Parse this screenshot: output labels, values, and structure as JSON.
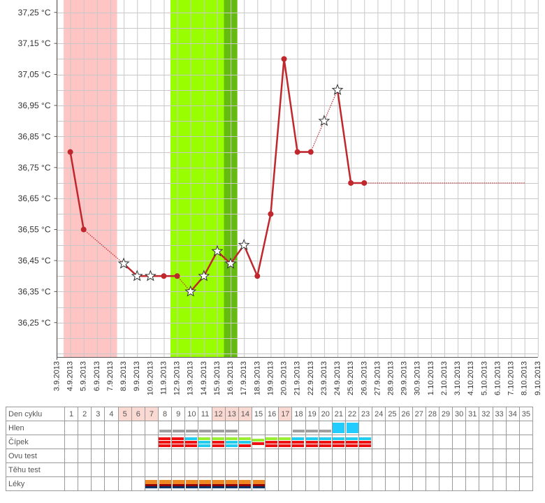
{
  "colors": {
    "line": "#c0272d",
    "pink_band": "#ffc4c4",
    "green_band": "#99ff00",
    "green_dark": "#66bb11",
    "grid": "#c8c8c8",
    "hlen_gray": "#a0a0a0",
    "hlen_blue": "#22ccff",
    "cipek_red": "#ee1111",
    "cipek_blue": "#22ccee",
    "cipek_green": "#99ee33",
    "leky_orange": "#ee8822",
    "leky_darkred": "#990000",
    "leky_navy": "#003366"
  },
  "chart_data": {
    "type": "line",
    "ylabel_unit": "°C",
    "ylim": [
      36.15,
      37.29
    ],
    "y_ticks": [
      "36,25 °C",
      "36,35 °C",
      "36,45 °C",
      "36,55 °C",
      "36,65 °C",
      "36,75 °C",
      "36,85 °C",
      "36,95 °C",
      "37,05 °C",
      "37,15 °C",
      "37,25 °C"
    ],
    "x_ticks": [
      "3.9.2013",
      "4.9.2013",
      "5.9.2013",
      "6.9.2013",
      "7.9.2013",
      "8.9.2013",
      "9.9.2013",
      "10.9.2013",
      "11.9.2013",
      "12.9.2013",
      "13.9.2013",
      "14.9.2013",
      "15.9.2013",
      "16.9.2013",
      "17.9.2013",
      "18.9.2013",
      "19.9.2013",
      "20.9.2013",
      "21.9.2013",
      "22.9.2013",
      "23.9.2013",
      "24.9.2013",
      "25.9.2013",
      "26.9.2013",
      "27.9.2013",
      "28.9.2013",
      "29.9.2013",
      "30.9.2013",
      "1.10.2013",
      "2.10.2013",
      "3.10.2013",
      "4.10.2013",
      "5.10.2013",
      "6.10.2013",
      "7.10.2013",
      "8.10.2013",
      "9.10.2013"
    ],
    "grid": true,
    "bands": [
      {
        "from_day": 1,
        "to_day": 4,
        "kind": "pink"
      },
      {
        "from_day": 9,
        "to_day": 13,
        "kind": "green"
      },
      {
        "from_day": 13,
        "to_day": 13,
        "kind": "green_dark"
      }
    ],
    "points": [
      {
        "day": 1,
        "date": "4.9.2013",
        "y": 36.8,
        "marker": "dot"
      },
      {
        "day": 2,
        "date": "5.9.2013",
        "y": 36.55,
        "marker": "dot"
      },
      {
        "day": 5,
        "date": "8.9.2013",
        "y": 36.44,
        "marker": "star"
      },
      {
        "day": 6,
        "date": "9.9.2013",
        "y": 36.4,
        "marker": "star"
      },
      {
        "day": 7,
        "date": "10.9.2013",
        "y": 36.4,
        "marker": "star"
      },
      {
        "day": 8,
        "date": "11.9.2013",
        "y": 36.4,
        "marker": "dot"
      },
      {
        "day": 9,
        "date": "12.9.2013",
        "y": 36.4,
        "marker": "dot"
      },
      {
        "day": 10,
        "date": "13.9.2013",
        "y": 36.35,
        "marker": "star"
      },
      {
        "day": 11,
        "date": "14.9.2013",
        "y": 36.4,
        "marker": "star"
      },
      {
        "day": 12,
        "date": "15.9.2013",
        "y": 36.48,
        "marker": "star"
      },
      {
        "day": 13,
        "date": "16.9.2013",
        "y": 36.44,
        "marker": "star"
      },
      {
        "day": 14,
        "date": "17.9.2013",
        "y": 36.5,
        "marker": "star"
      },
      {
        "day": 15,
        "date": "18.9.2013",
        "y": 36.4,
        "marker": "dot"
      },
      {
        "day": 16,
        "date": "19.9.2013",
        "y": 36.6,
        "marker": "dot"
      },
      {
        "day": 17,
        "date": "20.9.2013",
        "y": 37.1,
        "marker": "dot"
      },
      {
        "day": 18,
        "date": "21.9.2013",
        "y": 36.8,
        "marker": "dot"
      },
      {
        "day": 19,
        "date": "22.9.2013",
        "y": 36.8,
        "marker": "dot"
      },
      {
        "day": 20,
        "date": "23.9.2013",
        "y": 36.9,
        "marker": "star"
      },
      {
        "day": 21,
        "date": "24.9.2013",
        "y": 37.0,
        "marker": "star"
      },
      {
        "day": 22,
        "date": "25.9.2013",
        "y": 36.7,
        "marker": "dot"
      },
      {
        "day": 23,
        "date": "26.9.2013",
        "y": 36.7,
        "marker": "dot"
      }
    ],
    "segments": [
      {
        "from_day": 1,
        "to_day": 2,
        "style": "solid"
      },
      {
        "from_day": 2,
        "to_day": 5,
        "style": "dotted"
      },
      {
        "from_day": 5,
        "to_day": 9,
        "style": "solid"
      },
      {
        "from_day": 9,
        "to_day": 10,
        "style": "dotted"
      },
      {
        "from_day": 10,
        "to_day": 19,
        "style": "solid"
      },
      {
        "from_day": 19,
        "to_day": 21,
        "style": "dotted"
      },
      {
        "from_day": 21,
        "to_day": 23,
        "style": "solid"
      }
    ],
    "projection": {
      "from_day": 23,
      "to_day": 35,
      "y": 36.7,
      "style": "dotted"
    }
  },
  "table": {
    "label_den_cyklu": "Den cyklu",
    "label_hlen": "Hlen",
    "label_cipek": "Čípek",
    "label_ovu": "Ovu test",
    "label_tehu": "Těhu test",
    "label_leky": "Léky",
    "days": [
      "1",
      "2",
      "3",
      "4",
      "5",
      "6",
      "7",
      "8",
      "9",
      "10",
      "11",
      "12",
      "13",
      "14",
      "15",
      "16",
      "17",
      "18",
      "19",
      "20",
      "21",
      "22",
      "23",
      "24",
      "25",
      "26",
      "27",
      "28",
      "29",
      "30",
      "31",
      "32",
      "33",
      "34",
      "35"
    ],
    "highlighted_days": [
      5,
      6,
      7,
      12,
      13,
      14,
      17
    ],
    "hlen": {
      "8": "gray",
      "9": "gray",
      "10": "gray",
      "11": "gray",
      "12": "gray",
      "13": "gray",
      "18": "gray",
      "19": "gray",
      "20": "gray",
      "21": "blue",
      "22": "blue"
    },
    "cipek": {
      "8": [
        "red",
        "red",
        "red"
      ],
      "9": [
        "red",
        "red",
        "red"
      ],
      "10": [
        "blue",
        "red",
        "red"
      ],
      "11": [
        "green",
        "blue",
        "blue"
      ],
      "12": [
        "green",
        "red",
        "red"
      ],
      "13": [
        "green",
        "blue",
        "blue"
      ],
      "14": [
        "green",
        "blue",
        "red"
      ],
      "15": [
        "green",
        "red"
      ],
      "16": [
        "green",
        "red",
        "red"
      ],
      "17": [
        "green",
        "red",
        "red"
      ],
      "18": [
        "blue",
        "red",
        "red"
      ],
      "19": [
        "blue",
        "red",
        "red"
      ],
      "20": [
        "blue",
        "red",
        "red"
      ],
      "21": [
        "blue",
        "red",
        "red"
      ],
      "22": [
        "blue",
        "red",
        "red"
      ],
      "23": [
        "blue",
        "red",
        "red"
      ]
    },
    "leky_days": [
      7,
      8,
      9,
      10,
      11,
      12,
      13,
      14,
      15
    ]
  }
}
